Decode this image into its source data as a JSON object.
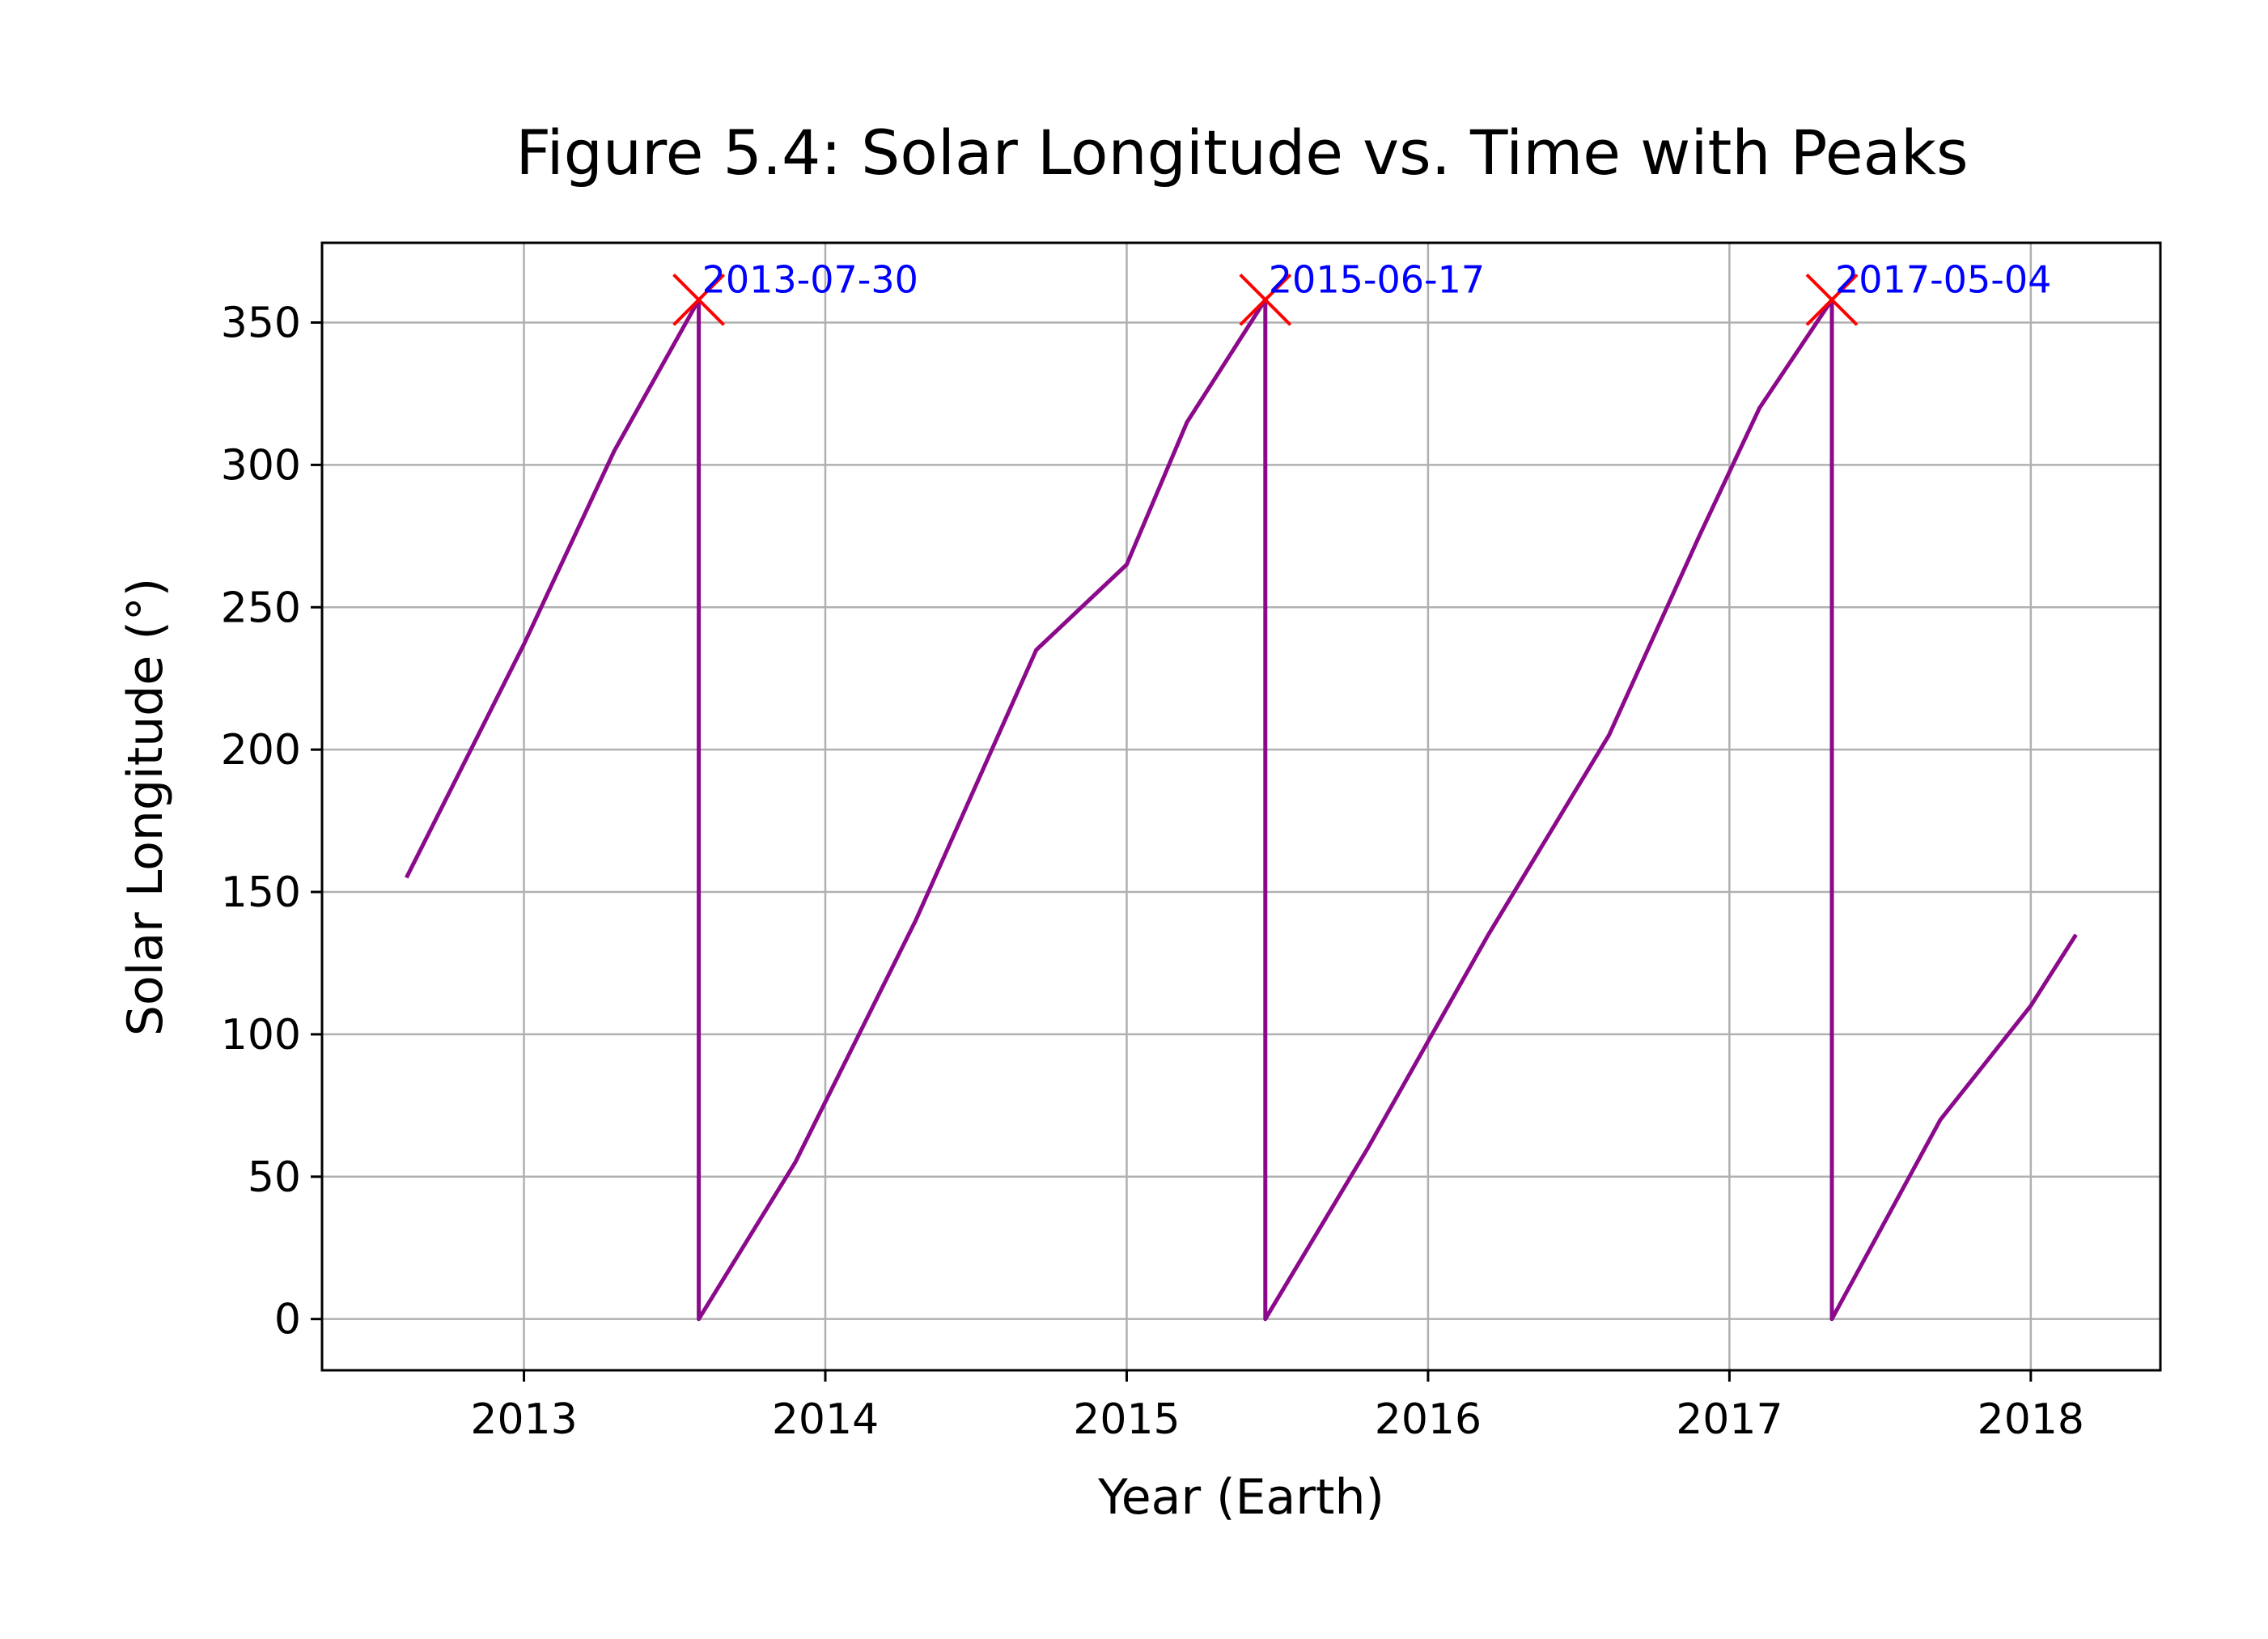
{
  "chart_data": {
    "type": "line",
    "title": "Figure 5.4: Solar Longitude vs. Time with Peaks",
    "xlabel": "Year (Earth)",
    "ylabel": "Solar Longitude (°)",
    "xlim": [
      2012.33,
      2018.43
    ],
    "ylim": [
      -18,
      378
    ],
    "xticks": [
      2013,
      2014,
      2015,
      2016,
      2017,
      2018
    ],
    "yticks": [
      0,
      50,
      100,
      150,
      200,
      250,
      300,
      350
    ],
    "grid": true,
    "colors": {
      "line": "#8b0a8b",
      "peak_marker": "#ff0000",
      "peak_label": "#0000ff"
    },
    "series": [
      {
        "x": [
          2012.61,
          2013.0,
          2013.3,
          2013.58,
          2013.58,
          2013.9,
          2014.3,
          2014.7,
          2015.0,
          2015.2,
          2015.46,
          2015.46,
          2015.8,
          2016.2,
          2016.6,
          2016.9,
          2017.1,
          2017.34,
          2017.34,
          2017.7,
          2018.0,
          2018.15
        ],
        "y": [
          155,
          237,
          305,
          358,
          0,
          55,
          140,
          235,
          265,
          315,
          358,
          0,
          60,
          135,
          205,
          275,
          320,
          358,
          0,
          70,
          110,
          135
        ]
      }
    ],
    "peaks": [
      {
        "x": 2013.58,
        "y": 358,
        "label": "2013-07-30"
      },
      {
        "x": 2015.46,
        "y": 358,
        "label": "2015-06-17"
      },
      {
        "x": 2017.34,
        "y": 358,
        "label": "2017-05-04"
      }
    ]
  }
}
